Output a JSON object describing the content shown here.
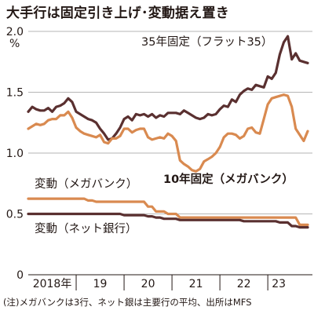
{
  "chart_data": {
    "type": "line",
    "title": "大手行は固定引き上げ･変動据え置き",
    "ylabel": "%",
    "ylim": [
      0,
      2.0
    ],
    "yticks": [
      "2.0",
      "1.5",
      "1.0",
      "0.5",
      "0"
    ],
    "xticks": [
      "2018年",
      "19",
      "20",
      "21",
      "22",
      "23"
    ],
    "x_start": "2018-01",
    "x_end": "2023-10",
    "grid": "horizontal",
    "series": [
      {
        "name": "35年固定（フラット35）",
        "color": "#5a3030",
        "values": [
          1.34,
          1.38,
          1.36,
          1.35,
          1.35,
          1.37,
          1.34,
          1.38,
          1.39,
          1.41,
          1.45,
          1.42,
          1.34,
          1.32,
          1.3,
          1.28,
          1.27,
          1.25,
          1.2,
          1.16,
          1.11,
          1.12,
          1.16,
          1.21,
          1.28,
          1.3,
          1.27,
          1.32,
          1.31,
          1.32,
          1.3,
          1.32,
          1.29,
          1.31,
          1.3,
          1.33,
          1.33,
          1.33,
          1.32,
          1.35,
          1.33,
          1.31,
          1.29,
          1.28,
          1.29,
          1.32,
          1.31,
          1.32,
          1.36,
          1.39,
          1.38,
          1.44,
          1.42,
          1.48,
          1.51,
          1.53,
          1.52,
          1.56,
          1.55,
          1.54,
          1.63,
          1.61,
          1.66,
          1.81,
          1.91,
          1.96,
          1.77,
          1.82,
          1.76,
          1.75,
          1.74
        ]
      },
      {
        "name": "10年固定（メガバンク）",
        "color": "#d98a50",
        "values": [
          1.2,
          1.22,
          1.24,
          1.23,
          1.24,
          1.27,
          1.28,
          1.28,
          1.31,
          1.31,
          1.34,
          1.29,
          1.21,
          1.18,
          1.16,
          1.15,
          1.14,
          1.13,
          1.15,
          1.09,
          1.08,
          1.12,
          1.12,
          1.14,
          1.2,
          1.2,
          1.17,
          1.19,
          1.2,
          1.2,
          1.13,
          1.11,
          1.12,
          1.13,
          1.12,
          1.16,
          1.14,
          1.1,
          0.94,
          0.91,
          0.89,
          0.86,
          0.85,
          0.87,
          0.93,
          0.95,
          0.97,
          1.0,
          1.05,
          1.13,
          1.16,
          1.16,
          1.15,
          1.12,
          1.14,
          1.2,
          1.21,
          1.17,
          1.16,
          1.28,
          1.4,
          1.45,
          1.46,
          1.47,
          1.48,
          1.47,
          1.38,
          1.2,
          1.15,
          1.1,
          1.18
        ]
      },
      {
        "name": "変動（メガバンク）",
        "color": "#d98a50",
        "values": [
          0.625,
          0.625,
          0.625,
          0.625,
          0.625,
          0.625,
          0.625,
          0.625,
          0.625,
          0.625,
          0.625,
          0.625,
          0.625,
          0.625,
          0.625,
          0.61,
          0.61,
          0.6,
          0.6,
          0.6,
          0.6,
          0.6,
          0.6,
          0.6,
          0.6,
          0.6,
          0.6,
          0.6,
          0.6,
          0.6,
          0.56,
          0.56,
          0.52,
          0.52,
          0.52,
          0.5,
          0.5,
          0.5,
          0.47,
          0.47,
          0.47,
          0.47,
          0.47,
          0.47,
          0.47,
          0.47,
          0.47,
          0.47,
          0.47,
          0.47,
          0.47,
          0.47,
          0.47,
          0.47,
          0.47,
          0.47,
          0.47,
          0.47,
          0.47,
          0.47,
          0.47,
          0.47,
          0.47,
          0.47,
          0.47,
          0.47,
          0.47,
          0.47,
          0.41,
          0.41,
          0.41
        ]
      },
      {
        "name": "変動（ネット銀行）",
        "color": "#5a3030",
        "values": [
          0.5,
          0.5,
          0.5,
          0.5,
          0.5,
          0.5,
          0.5,
          0.5,
          0.5,
          0.5,
          0.5,
          0.5,
          0.5,
          0.5,
          0.5,
          0.5,
          0.5,
          0.5,
          0.5,
          0.5,
          0.5,
          0.5,
          0.5,
          0.5,
          0.49,
          0.49,
          0.49,
          0.49,
          0.49,
          0.49,
          0.48,
          0.48,
          0.47,
          0.47,
          0.46,
          0.46,
          0.46,
          0.46,
          0.45,
          0.45,
          0.45,
          0.45,
          0.45,
          0.45,
          0.45,
          0.45,
          0.45,
          0.45,
          0.45,
          0.45,
          0.45,
          0.45,
          0.45,
          0.45,
          0.44,
          0.44,
          0.44,
          0.44,
          0.44,
          0.44,
          0.44,
          0.44,
          0.44,
          0.43,
          0.43,
          0.43,
          0.4,
          0.4,
          0.39,
          0.39,
          0.39
        ]
      }
    ]
  },
  "footnote": "(注)メガバンクは3行、ネット銀は主要行の平均、出所はMFS"
}
